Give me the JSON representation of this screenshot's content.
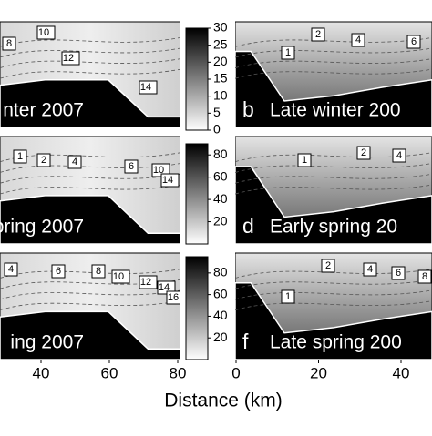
{
  "figure": {
    "x_label": "Distance (km)",
    "x_ticks_left": [
      40,
      60,
      80
    ],
    "x_ticks_right": [
      0,
      20,
      40
    ],
    "colorbars": [
      {
        "ticks": [
          30,
          25,
          20,
          15,
          10,
          5,
          0
        ]
      },
      {
        "ticks": [
          80,
          60,
          40,
          20
        ]
      },
      {
        "ticks": [
          80,
          60,
          40,
          20
        ]
      }
    ],
    "panels": [
      {
        "letter": null,
        "label": "nter 2007",
        "contour_labels": [
          "8",
          "10",
          "12",
          "14"
        ]
      },
      {
        "letter": "b",
        "label": "Late winter 200",
        "contour_labels": [
          "1",
          "2",
          "4",
          "6"
        ]
      },
      {
        "letter": null,
        "label": "pring 2007",
        "contour_labels": [
          "1",
          "2",
          "4",
          "6",
          "10",
          "14"
        ]
      },
      {
        "letter": "d",
        "label": "Early spring 20",
        "contour_labels": [
          "1",
          "2",
          "4"
        ]
      },
      {
        "letter": null,
        "label": "ing 2007",
        "contour_labels": [
          "4",
          "6",
          "8",
          "10",
          "12",
          "14",
          "16"
        ]
      },
      {
        "letter": "f",
        "label": "Late spring 200",
        "contour_labels": [
          "1",
          "2",
          "4",
          "6",
          "8"
        ]
      }
    ]
  }
}
